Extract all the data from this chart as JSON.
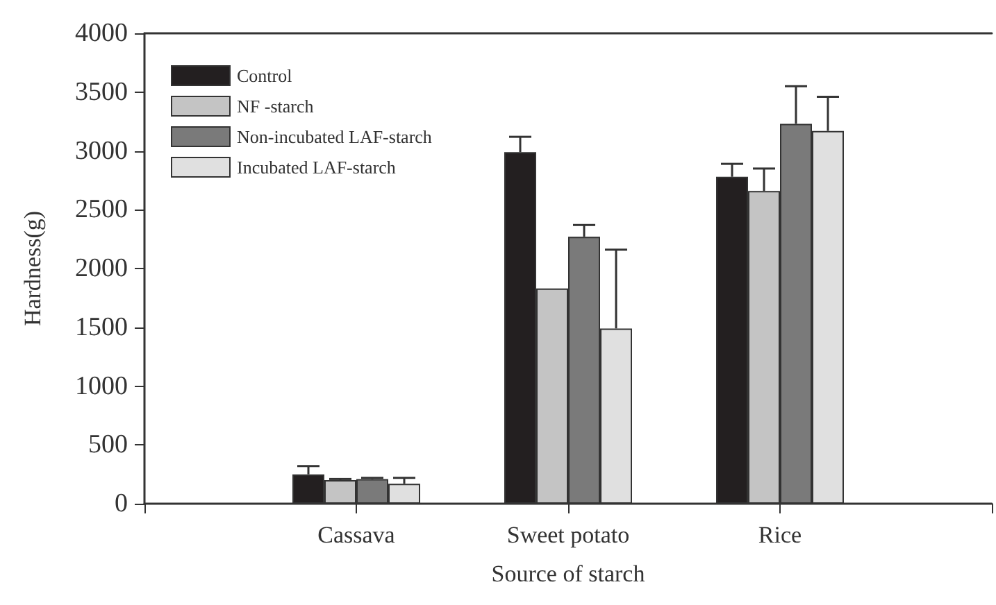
{
  "chart_data": {
    "type": "bar",
    "xlabel": "Source of starch",
    "ylabel": "Hardness(g)",
    "categories": [
      null,
      "Cassava",
      "Sweet potato",
      "Rice",
      null
    ],
    "series": [
      {
        "name": "Control",
        "color": "#231f20",
        "values": [
          null,
          250,
          2990,
          2780,
          null
        ],
        "errors": [
          null,
          [
            250,
            320
          ],
          [
            2990,
            3120
          ],
          [
            2780,
            2890
          ],
          null
        ]
      },
      {
        "name": "NF -starch",
        "color": "#c4c4c4",
        "values": [
          null,
          200,
          1830,
          2660,
          null
        ],
        "errors": [
          null,
          [
            200,
            210
          ],
          null,
          [
            2660,
            2850
          ],
          null
        ]
      },
      {
        "name": "Non-incubated LAF-starch",
        "color": "#7a7a7a",
        "values": [
          null,
          210,
          2270,
          3230,
          null
        ],
        "errors": [
          null,
          [
            210,
            220
          ],
          [
            2270,
            2370
          ],
          [
            3230,
            3550
          ],
          null
        ]
      },
      {
        "name": "Incubated LAF-starch",
        "color": "#e0e0e0",
        "values": [
          null,
          170,
          1490,
          3170,
          null
        ],
        "errors": [
          null,
          [
            170,
            220
          ],
          [
            1490,
            2160
          ],
          [
            3170,
            3460
          ],
          null
        ]
      }
    ],
    "ylim": [
      0,
      4000
    ],
    "yticks": [
      0,
      500,
      1000,
      1500,
      2000,
      2500,
      3000,
      3500,
      4000
    ],
    "grid": false,
    "legend": "top left"
  }
}
